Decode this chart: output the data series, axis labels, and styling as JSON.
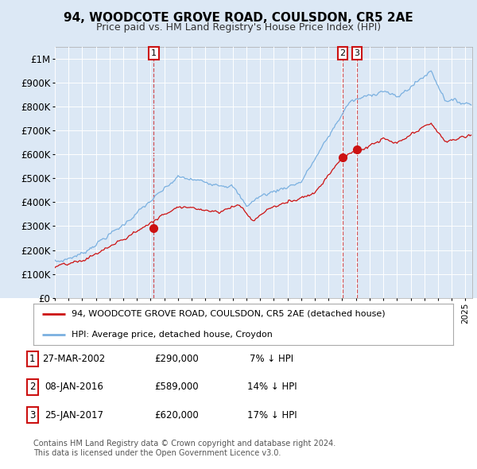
{
  "title": "94, WOODCOTE GROVE ROAD, COULSDON, CR5 2AE",
  "subtitle": "Price paid vs. HM Land Registry's House Price Index (HPI)",
  "fig_bg_color": "#dce8f5",
  "plot_bg_color": "#dce8f5",
  "bottom_bg_color": "#ffffff",
  "ylim": [
    0,
    1050000
  ],
  "yticks": [
    0,
    100000,
    200000,
    300000,
    400000,
    500000,
    600000,
    700000,
    800000,
    900000,
    1000000
  ],
  "ytick_labels": [
    "£0",
    "£100K",
    "£200K",
    "£300K",
    "£400K",
    "£500K",
    "£600K",
    "£700K",
    "£800K",
    "£900K",
    "£1M"
  ],
  "hpi_color": "#7ab0e0",
  "price_color": "#cc1111",
  "legend_entries": [
    "94, WOODCOTE GROVE ROAD, COULSDON, CR5 2AE (detached house)",
    "HPI: Average price, detached house, Croydon"
  ],
  "table_rows": [
    {
      "num": "1",
      "date": "27-MAR-2002",
      "price": "£290,000",
      "rel": "7% ↓ HPI"
    },
    {
      "num": "2",
      "date": "08-JAN-2016",
      "price": "£589,000",
      "rel": "14% ↓ HPI"
    },
    {
      "num": "3",
      "date": "25-JAN-2017",
      "price": "£620,000",
      "rel": "17% ↓ HPI"
    }
  ],
  "footer": "Contains HM Land Registry data © Crown copyright and database right 2024.\nThis data is licensed under the Open Government Licence v3.0.",
  "xmin": 1995,
  "xmax": 2025.5,
  "trans_dates": [
    2002.23,
    2016.03,
    2017.07
  ],
  "trans_prices": [
    290000,
    589000,
    620000
  ],
  "trans_labels": [
    "1",
    "2",
    "3"
  ]
}
